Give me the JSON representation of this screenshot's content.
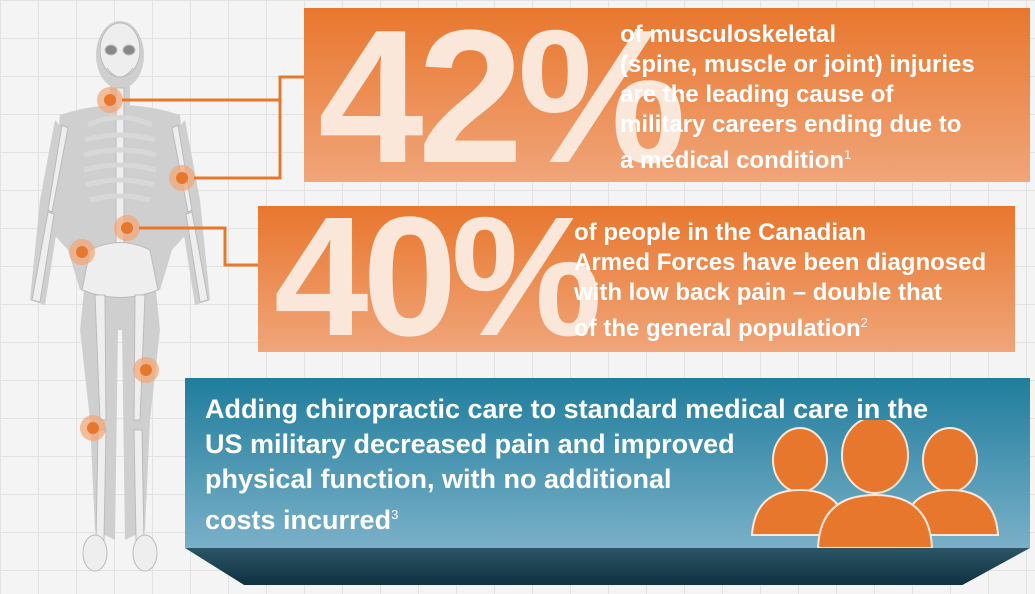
{
  "stats": [
    {
      "value": "42%",
      "lines": [
        "of musculoskeletal",
        "(spine, muscle or joint) injuries",
        "are the leading cause of",
        "military careers ending due to",
        "a medical condition"
      ],
      "footnote": "1"
    },
    {
      "value": "40%",
      "lines": [
        "of people in the Canadian",
        "Armed Forces have been diagnosed",
        "with low back pain – double that",
        "of the general population"
      ],
      "footnote": "2"
    }
  ],
  "finding": {
    "lines": [
      "Adding chiropractic care to standard medical care in the",
      "US military decreased pain and improved",
      "physical function, with no additional",
      "costs incurred"
    ],
    "footnote": "3"
  },
  "colors": {
    "orange": "#e8772e",
    "blue": "#1f7d9c",
    "dark_base": "#0f3140"
  },
  "icons": [
    "skeleton-illustration",
    "pain-point-marker",
    "people-group-icon"
  ]
}
